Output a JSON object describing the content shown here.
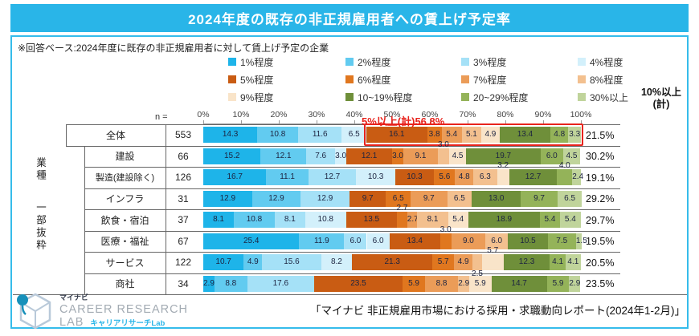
{
  "title": "2024年度の既存の非正規雇用者への賃上げ予定率",
  "note": "※回答ベース:2024年度に既存の非正規雇用者に対して賃上げ予定の企業",
  "colors": {
    "accent_cyan": "#29b5e8",
    "annotation_red": "#e8231c",
    "grid": "#666666",
    "series": [
      "#1eb4e9",
      "#62cbf0",
      "#a5e1f7",
      "#d3f0fb",
      "#c95c13",
      "#e0771f",
      "#eb9c58",
      "#f3c08f",
      "#f9e4c9",
      "#6f8f3a",
      "#94b359",
      "#c0d49b"
    ]
  },
  "axis": {
    "n_label": "n =",
    "ticks": [
      "0%",
      "10%",
      "20%",
      "30%",
      "40%",
      "50%",
      "60%",
      "70%",
      "80%",
      "90%",
      "100%"
    ]
  },
  "right_column": {
    "header": [
      "10%以上",
      "(計)"
    ]
  },
  "group_label": [
    "業種",
    "一部抜粋"
  ],
  "annotation": {
    "text": "5%以上(計)56.8%",
    "applies_to_row": "全体",
    "spans_series_from": "5%程度",
    "spans_series_to": "30%以上"
  },
  "chart_data": {
    "type": "stacked-bar-horizontal",
    "unit": "%",
    "xlim": [
      0,
      100
    ],
    "x_ticks_percent": [
      0,
      10,
      20,
      30,
      40,
      50,
      60,
      70,
      80,
      90,
      100
    ],
    "legend_position": "top",
    "series_labels": [
      "1%程度",
      "2%程度",
      "3%程度",
      "4%程度",
      "5%程度",
      "6%程度",
      "7%程度",
      "8%程度",
      "9%程度",
      "10~19%程度",
      "20~29%程度",
      "30%以上"
    ],
    "rows": [
      {
        "label": "全体",
        "n": "553",
        "values": [
          14.3,
          10.8,
          11.6,
          6.5,
          16.1,
          3.8,
          5.4,
          5.1,
          4.9,
          13.4,
          4.8,
          3.3
        ],
        "total_10_plus": "21.5%",
        "labels_above": [],
        "labels_below": []
      },
      {
        "label": "建設",
        "n": "66",
        "values": [
          15.2,
          12.1,
          7.6,
          3.0,
          12.1,
          3.0,
          9.1,
          3.0,
          4.5,
          19.7,
          6.0,
          4.5
        ],
        "total_10_plus": "30.2%",
        "labels_above": [
          7
        ],
        "labels_below": []
      },
      {
        "label": "製造(建設除く)",
        "n": "126",
        "values": [
          16.7,
          11.1,
          12.7,
          10.3,
          10.3,
          5.6,
          4.8,
          6.3,
          3.2,
          12.7,
          4.0,
          2.4
        ],
        "total_10_plus": "19.1%",
        "labels_above": [
          8,
          10
        ],
        "labels_below": []
      },
      {
        "label": "インフラ",
        "n": "31",
        "values": [
          12.9,
          12.9,
          12.9,
          0,
          9.7,
          6.5,
          9.7,
          6.5,
          0,
          13.0,
          9.7,
          6.5
        ],
        "total_10_plus": "29.2%",
        "labels_above": [],
        "labels_below": []
      },
      {
        "label": "飲食・宿泊",
        "n": "37",
        "values": [
          8.1,
          10.8,
          8.1,
          10.8,
          13.5,
          2.7,
          2.7,
          8.1,
          5.4,
          18.9,
          5.4,
          5.4
        ],
        "total_10_plus": "29.7%",
        "labels_above": [
          5
        ],
        "labels_below": []
      },
      {
        "label": "医療・福祉",
        "n": "67",
        "values": [
          25.4,
          11.9,
          6.0,
          6.0,
          13.4,
          3.0,
          9.0,
          6.0,
          0,
          10.5,
          7.5,
          1.5
        ],
        "total_10_plus": "19.5%",
        "labels_above": [
          5
        ],
        "labels_below": []
      },
      {
        "label": "サービス",
        "n": "122",
        "values": [
          10.7,
          4.9,
          15.6,
          8.2,
          21.3,
          5.7,
          4.9,
          2.5,
          5.7,
          12.3,
          4.1,
          4.1
        ],
        "total_10_plus": "20.5%",
        "labels_above": [
          8
        ],
        "labels_below": [
          7
        ]
      },
      {
        "label": "商社",
        "n": "34",
        "values": [
          2.9,
          8.8,
          17.6,
          0,
          23.5,
          5.9,
          8.8,
          2.9,
          5.9,
          14.7,
          5.9,
          2.9
        ],
        "total_10_plus": "23.5%",
        "labels_above": [],
        "labels_below": []
      }
    ]
  },
  "footer": {
    "citation": "「マイナビ 非正規雇用市場における採用・求職動向レポート(2024年1-2月)」",
    "logo": {
      "brand": "マイナビ",
      "line1": "CAREER RESEARCH",
      "line2": "LAB",
      "subtitle": "キャリアリサーチLab"
    }
  }
}
